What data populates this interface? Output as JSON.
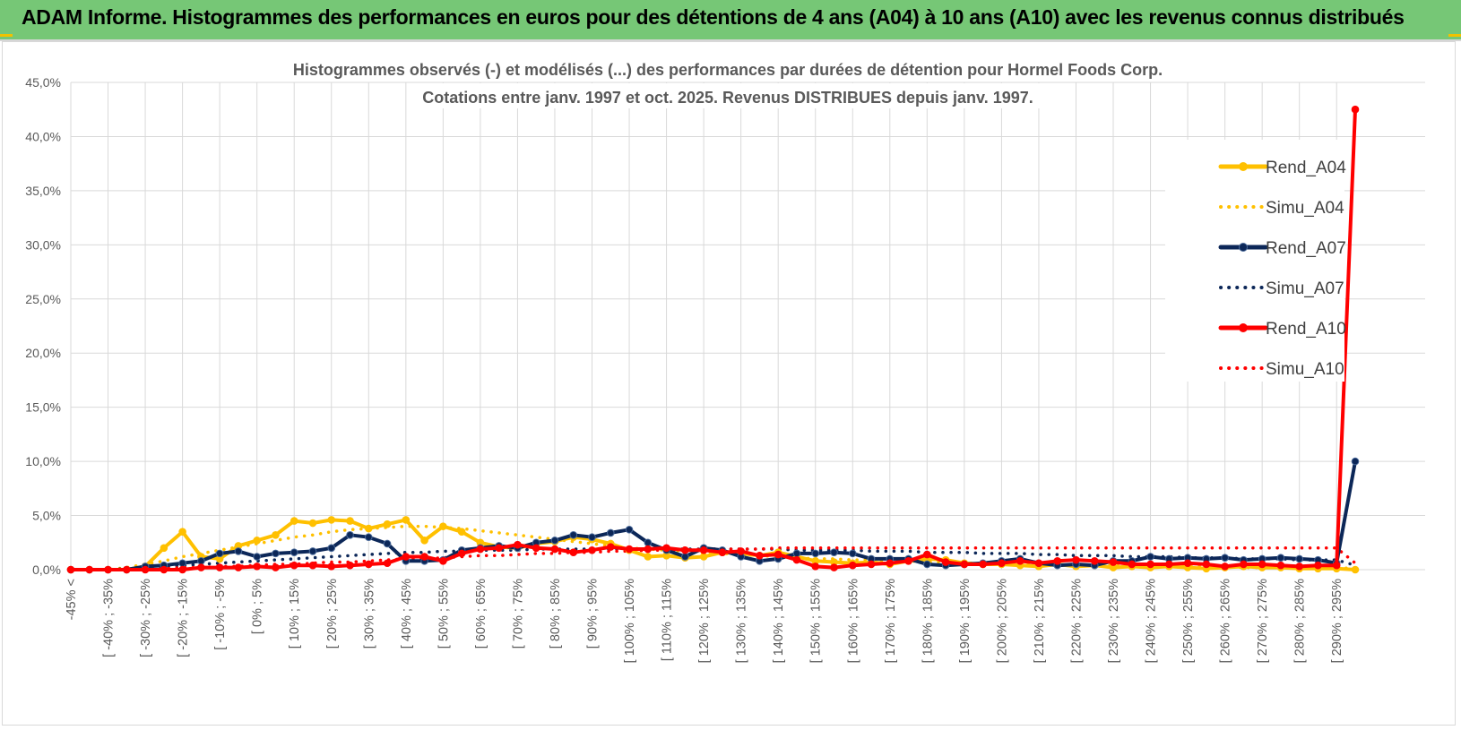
{
  "header": {
    "title": "ADAM Informe. Histogrammes des performances en euros pour des détentions de 4 ans (A04) à 10 ans (A10) avec les revenus connus distribués"
  },
  "colors": {
    "header_bg": "#76c776",
    "gold": "#ffc000",
    "navy": "#0c2758",
    "red": "#ff0000",
    "grid": "#d9d9d9"
  },
  "chart_data": {
    "type": "line",
    "title": "Histogrammes observés (-) et modélisés (...) des performances par durées de détention pour Hormel Foods Corp.",
    "subtitle": "Cotations entre janv. 1997 et oct. 2025.  Revenus DISTRIBUES depuis janv. 1997.",
    "xlabel": "",
    "ylabel": "",
    "ylim": [
      0,
      45
    ],
    "yticks": [
      "0,0%",
      "5,0%",
      "10,0%",
      "15,0%",
      "20,0%",
      "25,0%",
      "30,0%",
      "35,0%",
      "40,0%",
      "45,0%"
    ],
    "xtick_labels": [
      "-45% <",
      "[ -40% ; -35%",
      "[ -30% ; -25%",
      "[ -20% ; -15%",
      "[ -10% ; -5%",
      "[ 0% ; 5%",
      "[ 10% ; 15%",
      "[ 20% ; 25%",
      "[ 30% ; 35%",
      "[ 40% ; 45%",
      "[ 50% ; 55%",
      "[ 60% ; 65%",
      "[ 70% ; 75%",
      "[ 80% ; 85%",
      "[ 90% ; 95%",
      "[ 100% ; 105%",
      "[ 110% ; 115%",
      "[ 120% ; 125%",
      "[ 130% ; 135%",
      "[ 140% ; 145%",
      "[ 150% ; 155%",
      "[ 160% ; 165%",
      "[ 170% ; 175%",
      "[ 180% ; 185%",
      "[ 190% ; 195%",
      "[ 200% ; 205%",
      "[ 210% ; 215%",
      "[ 220% ; 225%",
      "[ 230% ; 235%",
      "[ 240% ; 245%",
      "[ 250% ; 255%",
      "[ 260% ; 265%",
      "[ 270% ; 275%",
      "[ 280% ; 285%",
      "[ 290% ; 295%"
    ],
    "n_categories": 70,
    "legend_position": "top-right",
    "series": [
      {
        "name": "Rend_A04",
        "style": "solid",
        "color": "#ffc000",
        "values": [
          0,
          0,
          0,
          0,
          0.3,
          2,
          3.5,
          1.2,
          1,
          2.2,
          2.7,
          3.2,
          4.5,
          4.3,
          4.6,
          4.5,
          3.8,
          4.2,
          4.6,
          2.7,
          4,
          3.5,
          2.5,
          2.1,
          2,
          2.4,
          2.6,
          3,
          2.8,
          2.4,
          1.8,
          1.2,
          1.3,
          1.1,
          1.2,
          1.6,
          1.5,
          1.3,
          1.6,
          1.2,
          0.8,
          0.7,
          0.6,
          0.7,
          0.5,
          0.8,
          1,
          0.9,
          0.6,
          0.5,
          0.5,
          0.4,
          0.3,
          0.5,
          0.3,
          0.4,
          0.2,
          0.3,
          0.2,
          0.3,
          0.2,
          0.1,
          0.2,
          0.3,
          0.2,
          0.2,
          0.1,
          0.1,
          0.1,
          0
        ]
      },
      {
        "name": "Simu_A04",
        "style": "dotted",
        "color": "#ffc000",
        "values": [
          0,
          0,
          0,
          0.2,
          0.5,
          0.8,
          1.2,
          1.5,
          1.8,
          2.1,
          2.4,
          2.7,
          3,
          3.2,
          3.5,
          3.7,
          3.8,
          3.9,
          4,
          4,
          3.9,
          3.8,
          3.6,
          3.4,
          3.2,
          3,
          2.8,
          2.6,
          2.4,
          2.2,
          2,
          1.9,
          1.8,
          1.7,
          1.6,
          1.5,
          1.4,
          1.3,
          1.2,
          1.1,
          1,
          1,
          0.9,
          0.9,
          0.8,
          0.8,
          0.7,
          0.7,
          0.6,
          0.6,
          0.6,
          0.5,
          0.5,
          0.5,
          0.4,
          0.4,
          0.4,
          0.4,
          0.3,
          0.3,
          0.3,
          0.3,
          0.3,
          0.2,
          0.2,
          0.2,
          0.2,
          0.2,
          0.2,
          0.1
        ]
      },
      {
        "name": "Rend_A07",
        "style": "solid",
        "color": "#0c2758",
        "values": [
          0,
          0,
          0,
          0,
          0.3,
          0.4,
          0.6,
          0.8,
          1.5,
          1.7,
          1.2,
          1.5,
          1.6,
          1.7,
          2,
          3.2,
          3,
          2.4,
          0.8,
          0.8,
          0.9,
          1.8,
          2,
          2.2,
          2,
          2.5,
          2.7,
          3.2,
          3,
          3.4,
          3.7,
          2.5,
          1.8,
          1.2,
          2,
          1.8,
          1.2,
          0.8,
          1,
          1.5,
          1.5,
          1.6,
          1.5,
          1,
          1,
          1,
          0.5,
          0.4,
          0.5,
          0.6,
          0.8,
          1,
          0.6,
          0.4,
          0.5,
          0.4,
          0.8,
          0.8,
          1.2,
          1,
          1.1,
          1,
          1.1,
          0.9,
          1,
          1.1,
          1,
          0.9,
          0.6,
          10
        ]
      },
      {
        "name": "Simu_A07",
        "style": "dotted",
        "color": "#0c2758",
        "values": [
          0,
          0,
          0,
          0.1,
          0.2,
          0.3,
          0.4,
          0.5,
          0.6,
          0.7,
          0.8,
          0.9,
          1,
          1.1,
          1.2,
          1.3,
          1.4,
          1.5,
          1.6,
          1.6,
          1.7,
          1.7,
          1.8,
          1.8,
          1.8,
          1.9,
          1.9,
          1.9,
          1.9,
          1.9,
          1.9,
          1.9,
          1.9,
          1.9,
          1.9,
          1.9,
          1.9,
          1.9,
          1.9,
          1.8,
          1.8,
          1.8,
          1.8,
          1.7,
          1.7,
          1.7,
          1.6,
          1.6,
          1.6,
          1.5,
          1.5,
          1.5,
          1.4,
          1.4,
          1.3,
          1.3,
          1.3,
          1.2,
          1.2,
          1.2,
          1.1,
          1.1,
          1.1,
          1,
          1,
          1,
          0.9,
          0.9,
          0.9,
          0.4
        ]
      },
      {
        "name": "Rend_A10",
        "style": "solid",
        "color": "#ff0000",
        "values": [
          0,
          0,
          0,
          0,
          0,
          0,
          0,
          0.2,
          0.2,
          0.2,
          0.3,
          0.2,
          0.4,
          0.4,
          0.3,
          0.4,
          0.5,
          0.6,
          1.2,
          1.2,
          0.8,
          1.5,
          1.9,
          2,
          2.3,
          2,
          1.9,
          1.6,
          1.8,
          2.1,
          1.9,
          1.9,
          2,
          1.8,
          1.8,
          1.6,
          1.7,
          1.3,
          1.4,
          0.9,
          0.3,
          0.2,
          0.4,
          0.5,
          0.6,
          0.8,
          1.4,
          0.7,
          0.5,
          0.5,
          0.6,
          0.8,
          0.6,
          0.8,
          0.9,
          0.8,
          0.7,
          0.5,
          0.5,
          0.5,
          0.6,
          0.5,
          0.3,
          0.5,
          0.5,
          0.4,
          0.3,
          0.4,
          0.4,
          42.5
        ]
      },
      {
        "name": "Simu_A10",
        "style": "dotted",
        "color": "#ff0000",
        "values": [
          0,
          0,
          0,
          0,
          0.1,
          0.1,
          0.2,
          0.2,
          0.3,
          0.3,
          0.4,
          0.5,
          0.5,
          0.6,
          0.7,
          0.7,
          0.8,
          0.9,
          1,
          1,
          1.1,
          1.2,
          1.3,
          1.3,
          1.4,
          1.5,
          1.5,
          1.6,
          1.6,
          1.7,
          1.7,
          1.8,
          1.8,
          1.8,
          1.9,
          1.9,
          1.9,
          1.9,
          2,
          2,
          2,
          2,
          2,
          2,
          2,
          2,
          2,
          2,
          2,
          2,
          2,
          2,
          2,
          2,
          2,
          2,
          2,
          2,
          2,
          2,
          2,
          2,
          2,
          2,
          2,
          2,
          2,
          2,
          2,
          0.6
        ]
      }
    ]
  }
}
